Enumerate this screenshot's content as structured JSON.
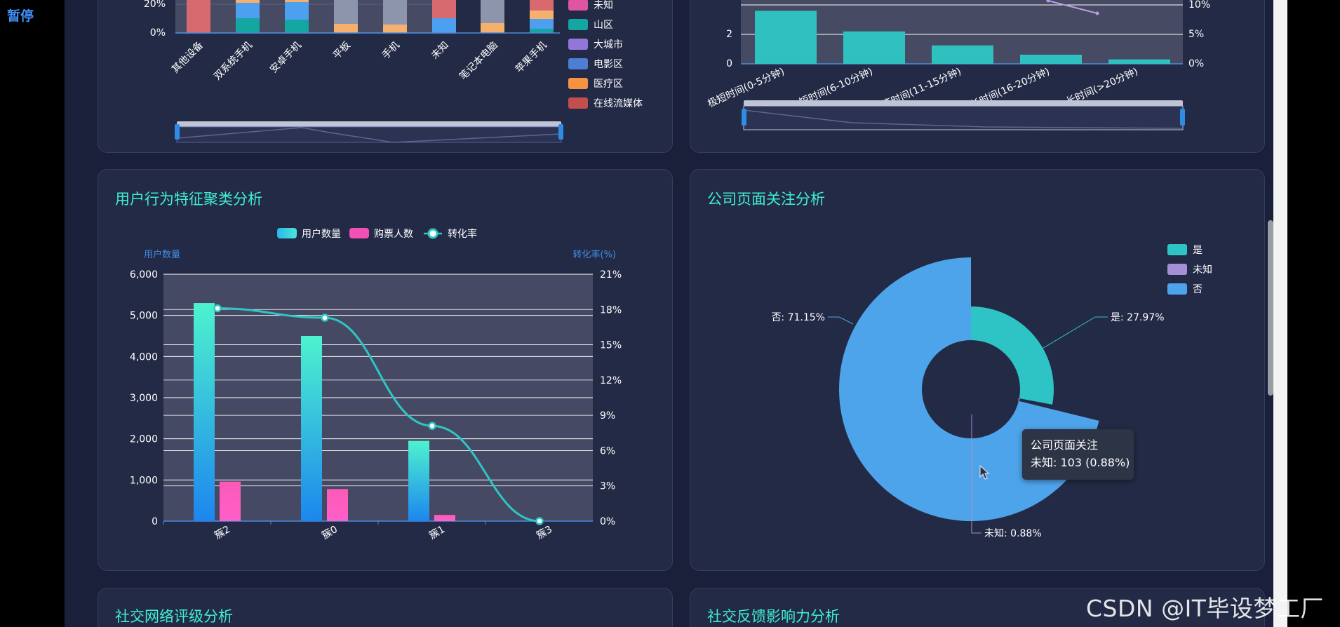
{
  "app": {
    "pause_label": "暂停",
    "watermark": "CSDN @IT毕设梦工厂"
  },
  "colors": {
    "accent_title": "#3ff0d3",
    "panel_bg": "#232a45",
    "page_bg": "#1b203a",
    "bar_blue": "#1f8fe9",
    "bar_pink": "#f34fb2",
    "line_teal": "#2ec6c2"
  },
  "device_panel": {
    "legend": [
      {
        "label": "未知",
        "color": "#e0559f"
      },
      {
        "label": "山区",
        "color": "#14a6a1"
      },
      {
        "label": "大城市",
        "color": "#9277d8"
      },
      {
        "label": "电影区",
        "color": "#4e7ed3"
      },
      {
        "label": "医疗区",
        "color": "#f59342"
      },
      {
        "label": "在线流媒体",
        "color": "#c44e4e"
      }
    ],
    "chart_data": {
      "type": "bar",
      "categories": [
        "其他设备",
        "双系统手机",
        "安卓手机",
        "平板",
        "手机",
        "未知",
        "笔记本电脑",
        "苹果手机"
      ],
      "y_ticks": [
        "0%",
        "20%"
      ]
    }
  },
  "duration_panel": {
    "chart_data": {
      "type": "bar",
      "categories": [
        "极短时间(0-5分钟)",
        "短时间(6-10分钟)",
        "中等时间(11-15分钟)",
        "较长时间(16-20分钟)",
        "长时间(>20分钟)"
      ],
      "values": [
        3.6,
        2.2,
        1.25,
        0.62,
        0.3
      ],
      "y_ticks": [
        "0",
        "2"
      ],
      "y2_ticks": [
        "0%",
        "5%",
        "10%"
      ]
    }
  },
  "cluster_panel": {
    "title": "用户行为特征聚类分析",
    "legend": {
      "users": "用户数量",
      "buyers": "购票人数",
      "rate": "转化率"
    },
    "y_axis_name": "用户数量",
    "y2_axis_name": "转化率(%)",
    "chart_data": {
      "type": "bar",
      "categories": [
        "簇2",
        "簇0",
        "簇1",
        "簇3"
      ],
      "series": [
        {
          "name": "用户数量",
          "type": "bar",
          "values": [
            5300,
            4500,
            1950,
            0
          ]
        },
        {
          "name": "购票人数",
          "type": "bar",
          "values": [
            960,
            780,
            150,
            0
          ]
        },
        {
          "name": "转化率",
          "type": "line",
          "values": [
            18.1,
            17.3,
            8.1,
            0
          ]
        }
      ],
      "y_ticks": [
        "0",
        "1,000",
        "2,000",
        "3,000",
        "4,000",
        "5,000",
        "6,000"
      ],
      "y2_ticks": [
        "0%",
        "3%",
        "6%",
        "9%",
        "12%",
        "15%",
        "18%",
        "21%"
      ],
      "ylim": [
        0,
        6000
      ],
      "y2lim": [
        0,
        21
      ]
    }
  },
  "attention_panel": {
    "title": "公司页面关注分析",
    "legend": [
      {
        "label": "是",
        "color": "#2ec4c6"
      },
      {
        "label": "未知",
        "color": "#a58fd6"
      },
      {
        "label": "否",
        "color": "#4ea4ea"
      }
    ],
    "chart_data": {
      "type": "pie",
      "slices": [
        {
          "label": "是",
          "percent": 27.97,
          "text": "是: 27.97%"
        },
        {
          "label": "未知",
          "percent": 0.88,
          "text": "未知: 0.88%"
        },
        {
          "label": "否",
          "percent": 71.15,
          "text": "否: 71.15%"
        }
      ]
    },
    "tooltip": {
      "title": "公司页面关注",
      "value": "未知: 103 (0.88%)"
    }
  },
  "bottom_panels": {
    "social_rating_title": "社交网络评级分析",
    "social_feedback_title": "社交反馈影响力分析"
  }
}
